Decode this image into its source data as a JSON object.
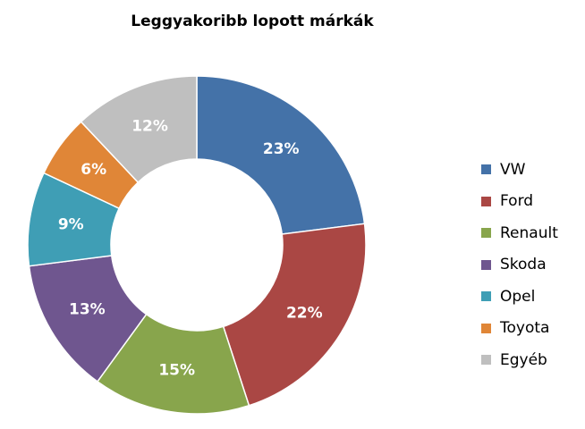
{
  "chart_data": {
    "type": "pie",
    "variant": "doughnut",
    "title": "Leggyakoribb lopott márkák",
    "legend_position": "right",
    "categories": [
      "VW",
      "Ford",
      "Renault",
      "Skoda",
      "Opel",
      "Toyota",
      "Egyéb"
    ],
    "values": [
      23,
      22,
      15,
      13,
      9,
      6,
      12
    ],
    "labels": [
      "23%",
      "22%",
      "15%",
      "13%",
      "9%",
      "6%",
      "12%"
    ],
    "colors": [
      "#4472A8",
      "#AA4744",
      "#88A54C",
      "#6F568F",
      "#3F9EB5",
      "#E08637",
      "#BFBFBF"
    ]
  }
}
